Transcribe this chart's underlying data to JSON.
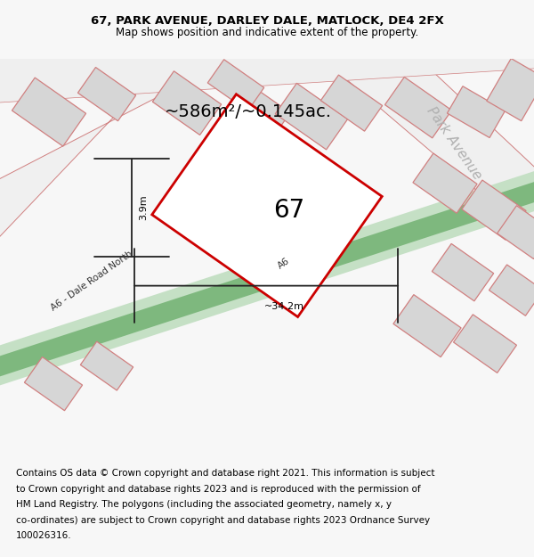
{
  "title_line1": "67, PARK AVENUE, DARLEY DALE, MATLOCK, DE4 2FX",
  "title_line2": "Map shows position and indicative extent of the property.",
  "area_text": "~586m²/~0.145ac.",
  "property_number": "67",
  "dim_width": "~34.2m",
  "dim_height": "3.9m",
  "road_label": "A6 - Dale Road North",
  "road_label2": "A6",
  "street_label": "Park Avenue",
  "footer_lines": [
    "Contains OS data © Crown copyright and database right 2021. This information is subject",
    "to Crown copyright and database rights 2023 and is reproduced with the permission of",
    "HM Land Registry. The polygons (including the associated geometry, namely x, y",
    "co-ordinates) are subject to Crown copyright and database rights 2023 Ordnance Survey",
    "100026316."
  ],
  "bg_color": "#f7f7f7",
  "map_bg": "#ffffff",
  "road_green_dark": "#7eb87e",
  "road_green_light": "#c5e0c5",
  "building_fill": "#d6d6d6",
  "building_edge": "#d08080",
  "plot_edge": "#cc0000",
  "dim_line_color": "#222222",
  "text_gray": "#b0b0b0",
  "footer_fontsize": 7.5,
  "title_fontsize": 9.5,
  "subtitle_fontsize": 8.5
}
